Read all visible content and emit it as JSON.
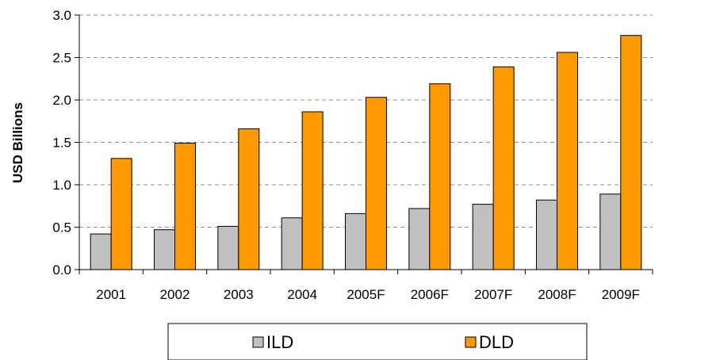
{
  "chart_data": {
    "type": "bar",
    "title": "",
    "xlabel": "",
    "ylabel": "USD Billions",
    "categories": [
      "2001",
      "2002",
      "2003",
      "2004",
      "2005F",
      "2006F",
      "2007F",
      "2008F",
      "2009F"
    ],
    "series": [
      {
        "name": "ILD",
        "color": "#c0c0c0",
        "values": [
          0.42,
          0.47,
          0.51,
          0.61,
          0.66,
          0.72,
          0.77,
          0.82,
          0.89
        ]
      },
      {
        "name": "DLD",
        "color": "#ff9900",
        "values": [
          1.31,
          1.49,
          1.66,
          1.86,
          2.03,
          2.19,
          2.39,
          2.56,
          2.76
        ]
      }
    ],
    "ylim": [
      0,
      3.0
    ],
    "yticks": [
      "0.0",
      "0.5",
      "1.0",
      "1.5",
      "2.0",
      "2.5",
      "3.0"
    ],
    "grid": true,
    "legend_position": "bottom"
  }
}
